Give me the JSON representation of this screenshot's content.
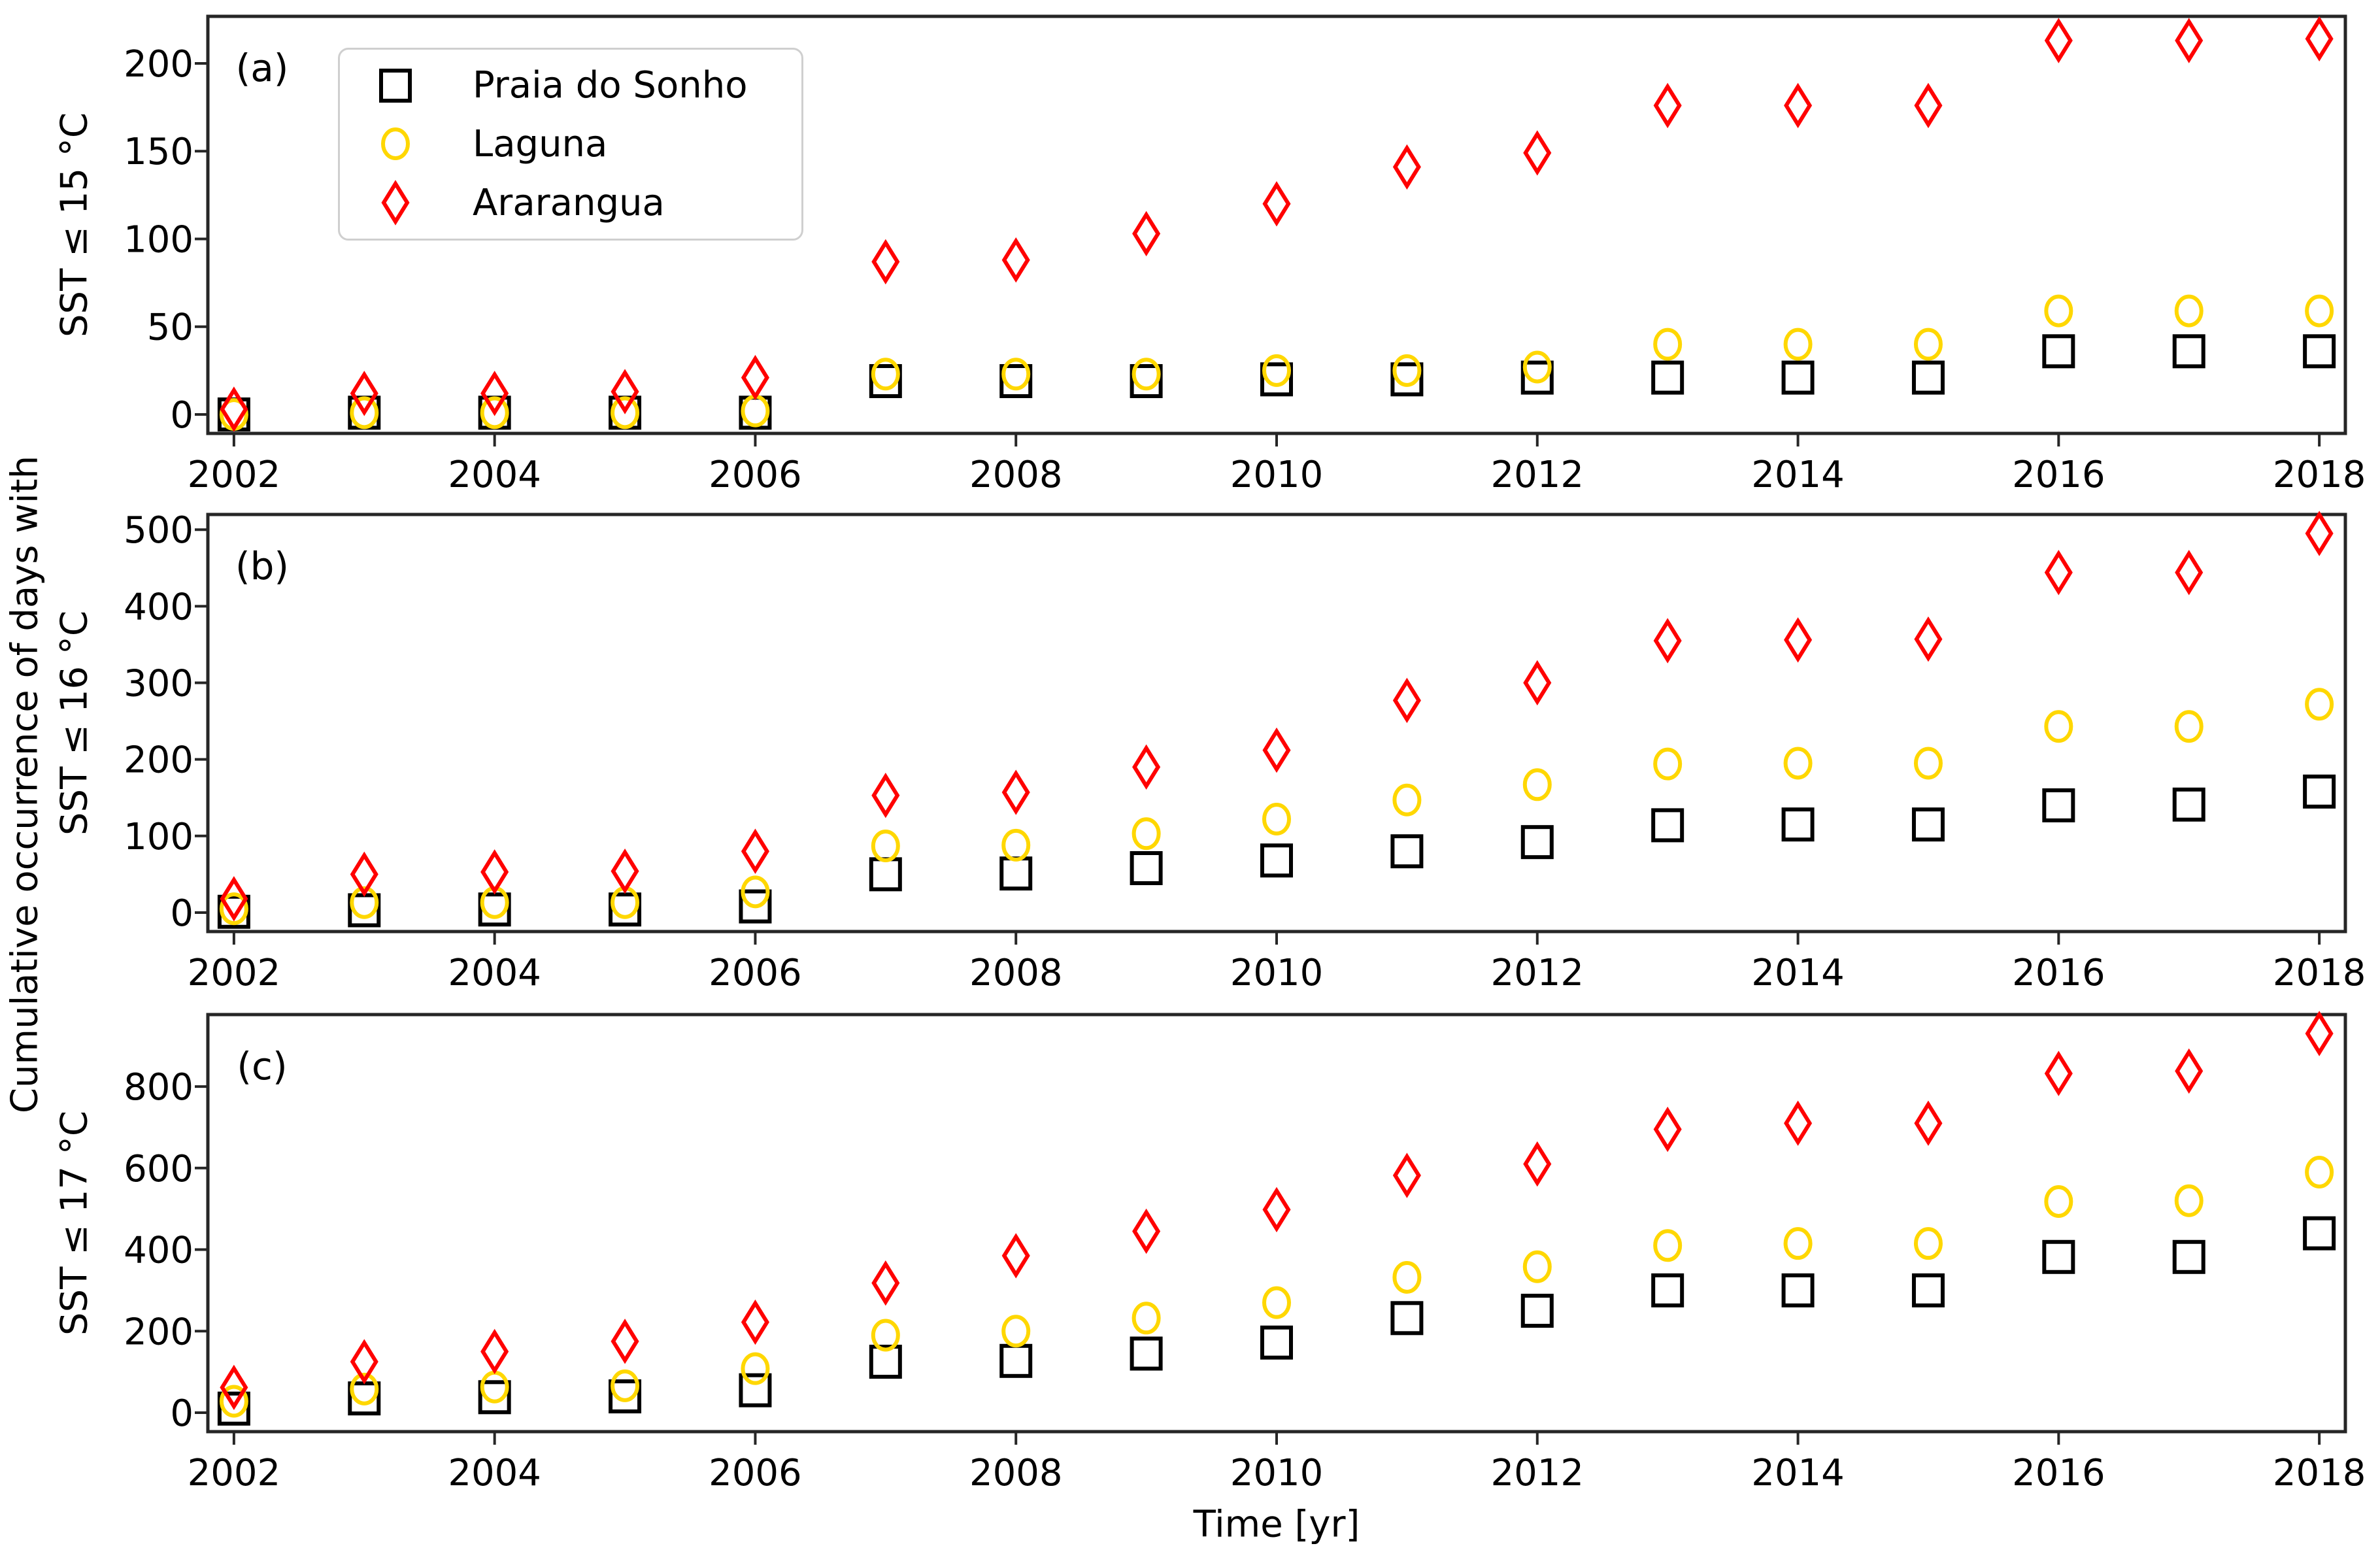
{
  "figure": {
    "xlabel": "Time [yr]",
    "ylabel_shared": "Cumulative occurrence of days with",
    "background": "#ffffff",
    "axis_color": "#262626",
    "text_color": "#000000"
  },
  "legend": {
    "position": "upper-left",
    "border_color": "#cfcfcf",
    "items": [
      {
        "label": "Praia do Sonho",
        "marker": "square",
        "color": "#000000"
      },
      {
        "label": "Laguna",
        "marker": "circle",
        "color": "#FFD700"
      },
      {
        "label": "Ararangua",
        "marker": "diamond",
        "color": "#FF0000"
      }
    ]
  },
  "chart_data": [
    {
      "type": "scatter",
      "panel_label": "(a)",
      "ylabel": "SST ≤ 15 °C",
      "x": [
        2002,
        2003,
        2004,
        2005,
        2006,
        2007,
        2008,
        2009,
        2010,
        2011,
        2012,
        2013,
        2014,
        2015,
        2016,
        2017,
        2018
      ],
      "xticks": [
        2002,
        2004,
        2006,
        2008,
        2010,
        2012,
        2014,
        2016,
        2018
      ],
      "yticks": [
        0,
        50,
        100,
        150,
        200
      ],
      "xlim": [
        2001.8,
        2018.2
      ],
      "ylim": [
        -10.8,
        226.8
      ],
      "legend_visible": true,
      "series": [
        {
          "name": "Praia do Sonho",
          "marker": "square",
          "color": "#000000",
          "values": [
            0,
            1,
            1,
            1,
            1,
            19,
            19,
            19,
            20,
            20,
            21,
            21,
            21,
            21,
            36,
            36,
            36
          ]
        },
        {
          "name": "Laguna",
          "marker": "circle",
          "color": "#FFD700",
          "values": [
            0,
            1,
            1,
            1,
            2,
            23,
            23,
            23,
            25,
            25,
            27,
            40,
            40,
            40,
            59,
            59,
            59
          ]
        },
        {
          "name": "Ararangua",
          "marker": "diamond",
          "color": "#FF0000",
          "values": [
            3,
            12,
            12,
            13,
            21,
            87,
            88,
            103,
            120,
            141,
            149,
            176,
            176,
            176,
            213,
            213,
            214
          ]
        }
      ]
    },
    {
      "type": "scatter",
      "panel_label": "(b)",
      "ylabel": "SST ≤ 16 °C",
      "x": [
        2002,
        2003,
        2004,
        2005,
        2006,
        2007,
        2008,
        2009,
        2010,
        2011,
        2012,
        2013,
        2014,
        2015,
        2016,
        2017,
        2018
      ],
      "xticks": [
        2002,
        2004,
        2006,
        2008,
        2010,
        2012,
        2014,
        2016,
        2018
      ],
      "yticks": [
        0,
        100,
        200,
        300,
        400,
        500
      ],
      "xlim": [
        2001.8,
        2018.2
      ],
      "ylim": [
        -24.8,
        519.8
      ],
      "legend_visible": false,
      "series": [
        {
          "name": "Praia do Sonho",
          "marker": "square",
          "color": "#000000",
          "values": [
            1,
            3,
            4,
            4,
            8,
            50,
            51,
            58,
            68,
            80,
            92,
            114,
            115,
            115,
            140,
            141,
            158
          ]
        },
        {
          "name": "Laguna",
          "marker": "circle",
          "color": "#FFD700",
          "values": [
            5,
            13,
            13,
            13,
            27,
            87,
            88,
            103,
            122,
            147,
            167,
            194,
            195,
            195,
            243,
            243,
            272
          ]
        },
        {
          "name": "Ararangua",
          "marker": "diamond",
          "color": "#FF0000",
          "values": [
            18,
            50,
            53,
            54,
            80,
            153,
            157,
            190,
            212,
            277,
            300,
            355,
            356,
            357,
            444,
            444,
            495
          ]
        }
      ]
    },
    {
      "type": "scatter",
      "panel_label": "(c)",
      "ylabel": "SST ≤ 17 °C",
      "x": [
        2002,
        2003,
        2004,
        2005,
        2006,
        2007,
        2008,
        2009,
        2010,
        2011,
        2012,
        2013,
        2014,
        2015,
        2016,
        2017,
        2018
      ],
      "xticks": [
        2002,
        2004,
        2006,
        2008,
        2010,
        2012,
        2014,
        2016,
        2018
      ],
      "yticks": [
        0,
        200,
        400,
        600,
        800
      ],
      "xlim": [
        2001.8,
        2018.2
      ],
      "ylim": [
        -46.5,
        976.5
      ],
      "legend_visible": false,
      "series": [
        {
          "name": "Praia do Sonho",
          "marker": "square",
          "color": "#000000",
          "values": [
            10,
            35,
            38,
            40,
            55,
            125,
            127,
            145,
            172,
            232,
            250,
            300,
            300,
            300,
            382,
            382,
            440
          ]
        },
        {
          "name": "Laguna",
          "marker": "circle",
          "color": "#FFD700",
          "values": [
            28,
            58,
            63,
            66,
            108,
            190,
            200,
            232,
            270,
            332,
            358,
            410,
            415,
            415,
            518,
            520,
            590
          ]
        },
        {
          "name": "Ararangua",
          "marker": "diamond",
          "color": "#FF0000",
          "values": [
            62,
            125,
            150,
            175,
            222,
            318,
            385,
            445,
            498,
            582,
            610,
            695,
            710,
            710,
            832,
            838,
            930
          ]
        }
      ]
    }
  ]
}
